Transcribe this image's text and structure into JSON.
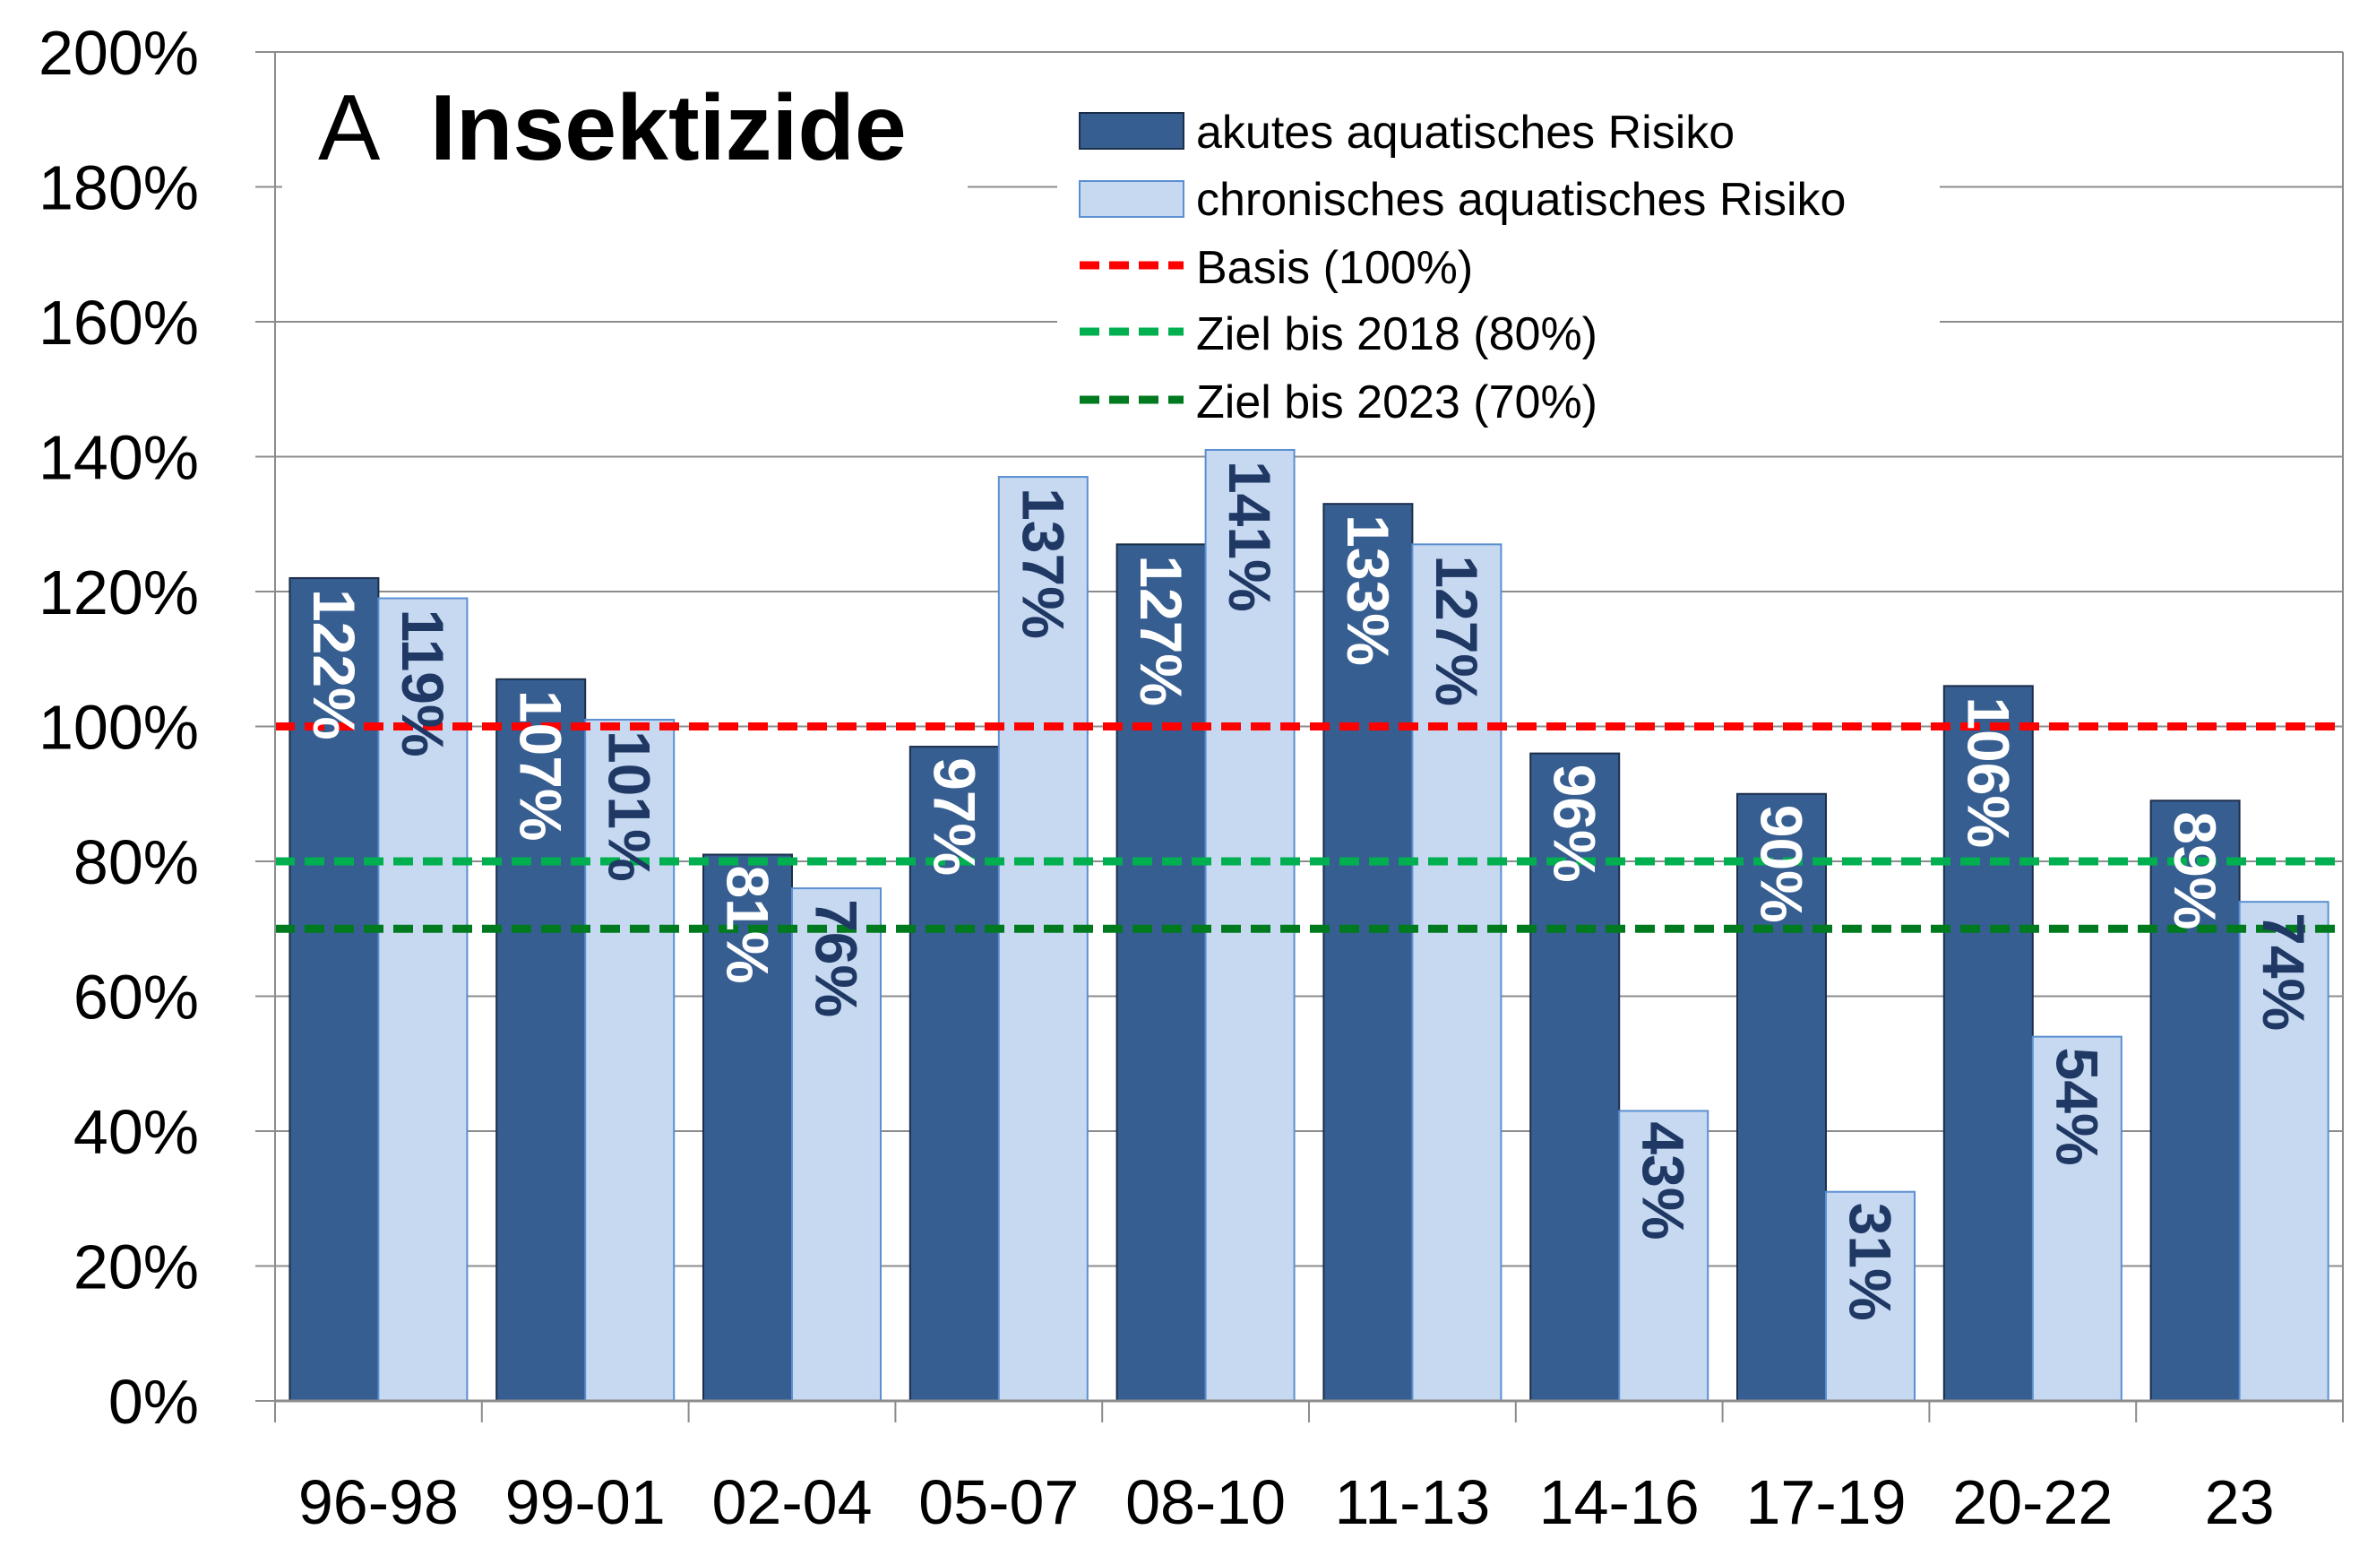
{
  "chart_data": {
    "type": "bar",
    "panel_letter": "A",
    "title": "Insektizide",
    "categories": [
      "96-98",
      "99-01",
      "02-04",
      "05-07",
      "08-10",
      "11-13",
      "14-16",
      "17-19",
      "20-22",
      "23"
    ],
    "series": [
      {
        "name": "akutes aquatisches Risiko",
        "values": [
          122,
          107,
          81,
          97,
          127,
          133,
          96,
          90,
          106,
          89
        ],
        "labels": [
          "122%",
          "107%",
          "81%",
          "97%",
          "127%",
          "133%",
          "96%",
          "90%",
          "106%",
          "89%"
        ],
        "color": "#375e91",
        "label_color": "#ffffff"
      },
      {
        "name": "chronisches aquatisches Risiko",
        "values": [
          119,
          101,
          76,
          137,
          141,
          127,
          43,
          31,
          54,
          74
        ],
        "labels": [
          "119%",
          "101%",
          "76%",
          "137%",
          "141%",
          "127%",
          "43%",
          "31%",
          "54%",
          "74%"
        ],
        "color": "#c6d9f1",
        "label_color": "#1f3864"
      }
    ],
    "reference_lines": [
      {
        "name": "Basis (100%)",
        "value": 100,
        "color": "#ff0000"
      },
      {
        "name": "Ziel bis 2018 (80%)",
        "value": 80,
        "color": "#00b050"
      },
      {
        "name": "Ziel bis 2023 (70%)",
        "value": 70,
        "color": "#007a1f"
      }
    ],
    "y_ticks": [
      "0%",
      "20%",
      "40%",
      "60%",
      "80%",
      "100%",
      "120%",
      "140%",
      "160%",
      "180%",
      "200%"
    ],
    "ylim": [
      0,
      200
    ],
    "grid": true,
    "legend_position": "top-right",
    "xlabel": "",
    "ylabel": ""
  }
}
